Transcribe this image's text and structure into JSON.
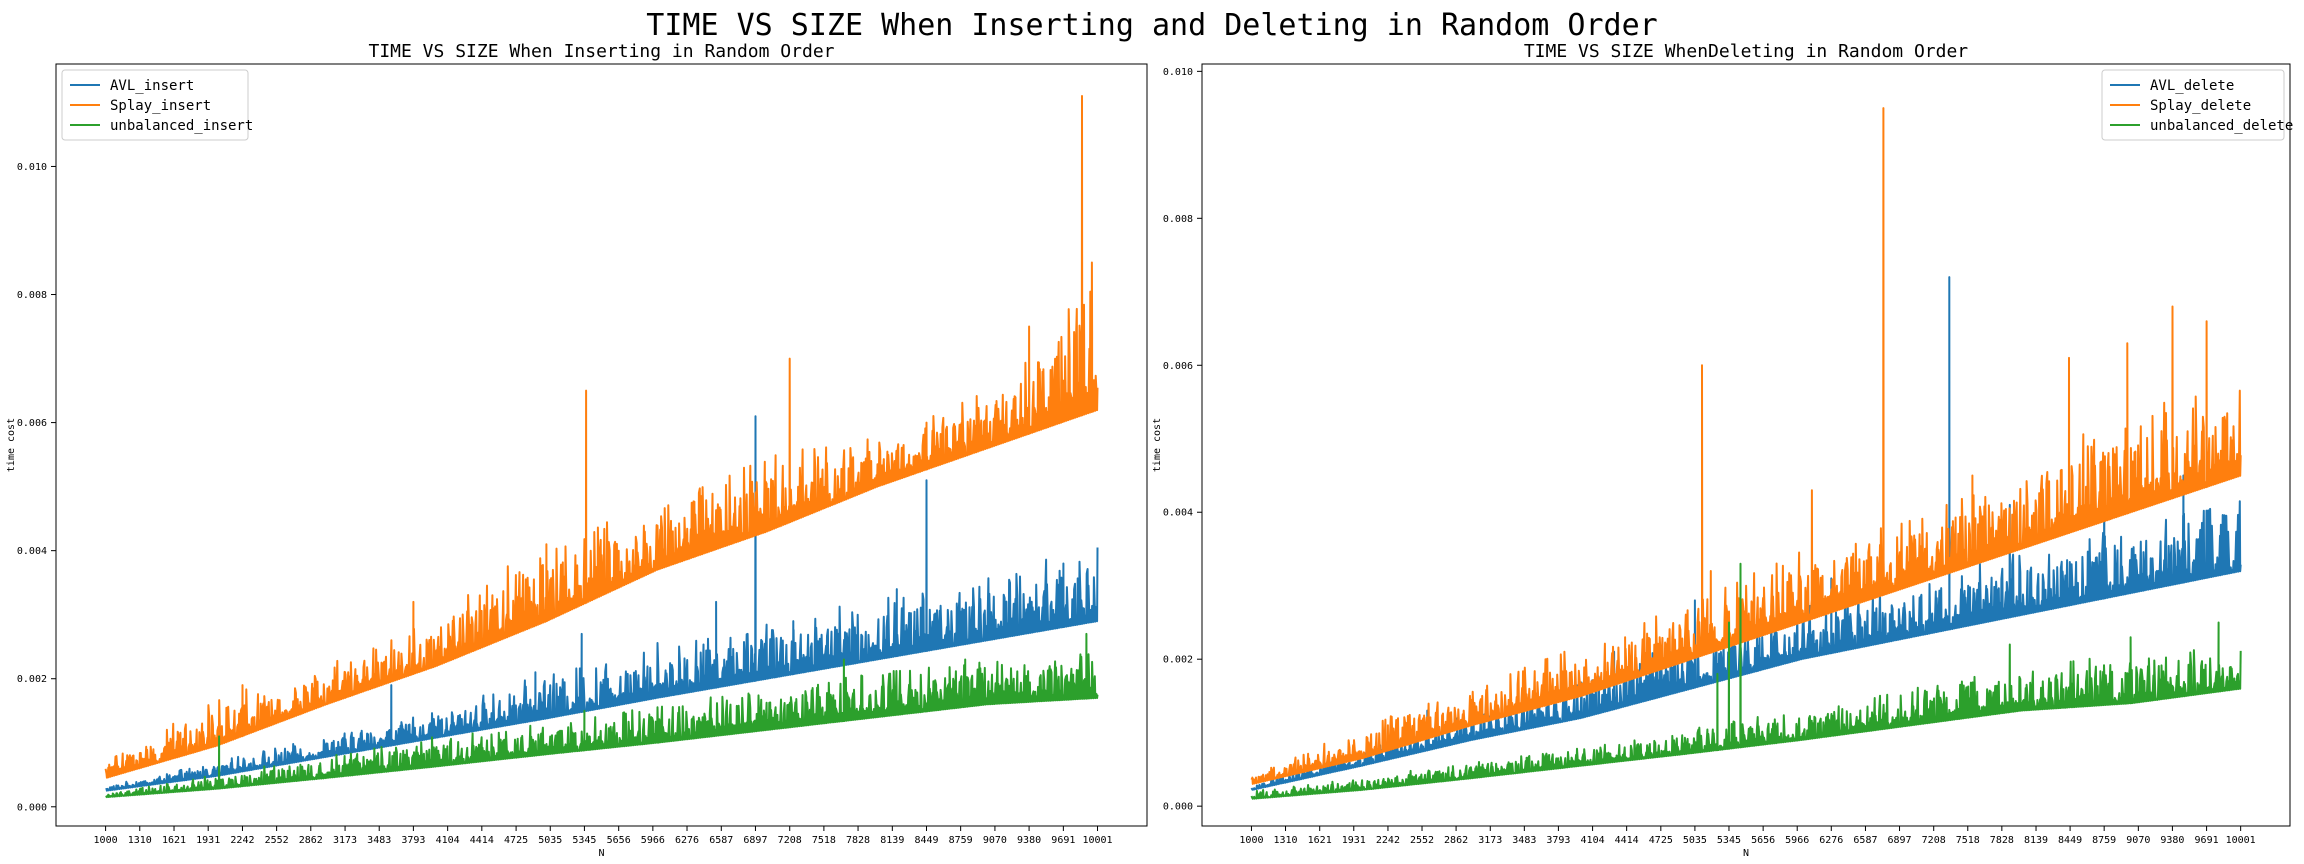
{
  "suptitle": "TIME VS SIZE When Inserting and Deleting in Random Order",
  "colors": {
    "blue": "#1f77b4",
    "orange": "#ff7f0e",
    "green": "#2ca02c"
  },
  "chart_data": [
    {
      "type": "line",
      "title": "TIME VS SIZE When Inserting in Random Order",
      "xlabel": "N",
      "ylabel": "time cost",
      "xlim": [
        550,
        10450
      ],
      "ylim": [
        -0.0003,
        0.0116
      ],
      "xticks": [
        1000,
        1310,
        1621,
        1931,
        2242,
        2552,
        2862,
        3173,
        3483,
        3793,
        4104,
        4414,
        4725,
        5035,
        5345,
        5656,
        5966,
        6276,
        6587,
        6897,
        7208,
        7518,
        7828,
        8139,
        8449,
        8759,
        9070,
        9380,
        9691,
        10001
      ],
      "yticks": [
        "0.000",
        "0.002",
        "0.004",
        "0.006",
        "0.008",
        "0.010"
      ],
      "legend_position": "upper-left",
      "series": [
        {
          "name": "AVL_insert",
          "color": "#1f77b4",
          "x": [
            1000,
            2000,
            3000,
            4000,
            5000,
            6000,
            7000,
            8000,
            9000,
            10001
          ],
          "baseline": [
            0.00025,
            0.00048,
            0.00078,
            0.00108,
            0.00138,
            0.0017,
            0.002,
            0.0023,
            0.0026,
            0.0029
          ],
          "upper": [
            0.00032,
            0.0007,
            0.0011,
            0.0015,
            0.0021,
            0.0026,
            0.0029,
            0.0033,
            0.0036,
            0.0041
          ],
          "peaks": [
            [
              3593,
              0.0019
            ],
            [
              4900,
              0.0021
            ],
            [
              5320,
              0.0027
            ],
            [
              6540,
              0.0032
            ],
            [
              6897,
              0.0061
            ],
            [
              7240,
              0.0029
            ],
            [
              8449,
              0.0051
            ],
            [
              8180,
              0.0034
            ],
            [
              9691,
              0.0038
            ]
          ]
        },
        {
          "name": "Splay_insert",
          "color": "#ff7f0e",
          "x": [
            1000,
            2000,
            3000,
            4000,
            5000,
            6000,
            7000,
            8000,
            9000,
            10001
          ],
          "baseline": [
            0.00045,
            0.00095,
            0.0016,
            0.0022,
            0.0029,
            0.0037,
            0.0043,
            0.005,
            0.0056,
            0.0062
          ],
          "upper": [
            0.0007,
            0.0017,
            0.0022,
            0.003,
            0.0042,
            0.0047,
            0.0055,
            0.0058,
            0.0065,
            0.0085
          ],
          "peaks": [
            [
              2242,
              0.0019
            ],
            [
              3173,
              0.0021
            ],
            [
              3793,
              0.0032
            ],
            [
              5000,
              0.0041
            ],
            [
              5360,
              0.0065
            ],
            [
              5656,
              0.004
            ],
            [
              7208,
              0.007
            ],
            [
              8449,
              0.006
            ],
            [
              9380,
              0.0075
            ],
            [
              9860,
              0.0111
            ],
            [
              9950,
              0.0085
            ]
          ]
        },
        {
          "name": "unbalanced_insert",
          "color": "#2ca02c",
          "x": [
            1000,
            2000,
            3000,
            4000,
            5000,
            6000,
            7000,
            8000,
            9000,
            10001
          ],
          "baseline": [
            0.00015,
            0.00028,
            0.00045,
            0.00063,
            0.00082,
            0.001,
            0.0012,
            0.0014,
            0.0016,
            0.0017
          ],
          "upper": [
            0.0002,
            0.0005,
            0.0008,
            0.0011,
            0.0013,
            0.0016,
            0.0019,
            0.0021,
            0.0023,
            0.0024
          ],
          "peaks": [
            [
              2030,
              0.0011
            ],
            [
              5345,
              0.0015
            ],
            [
              5390,
              0.0011
            ],
            [
              7700,
              0.0023
            ],
            [
              8800,
              0.0023
            ],
            [
              9900,
              0.0027
            ]
          ]
        }
      ]
    },
    {
      "type": "line",
      "title": "TIME VS SIZE WhenDeleting in Random Order",
      "xlabel": "N",
      "ylabel": "time cost",
      "xlim": [
        550,
        10450
      ],
      "ylim": [
        -0.00027,
        0.0101
      ],
      "xticks": [
        1000,
        1310,
        1621,
        1931,
        2242,
        2552,
        2862,
        3173,
        3483,
        3793,
        4104,
        4414,
        4725,
        5035,
        5345,
        5656,
        5966,
        6276,
        6587,
        6897,
        7208,
        7518,
        7828,
        8139,
        8449,
        8759,
        9070,
        9380,
        9691,
        10001
      ],
      "yticks": [
        "0.000",
        "0.002",
        "0.004",
        "0.006",
        "0.008",
        "0.010"
      ],
      "legend_position": "upper-right",
      "series": [
        {
          "name": "AVL_delete",
          "color": "#1f77b4",
          "x": [
            1000,
            2000,
            3000,
            4000,
            5000,
            6000,
            7000,
            8000,
            9000,
            10001
          ],
          "baseline": [
            0.00022,
            0.00055,
            0.0009,
            0.0012,
            0.0016,
            0.002,
            0.0023,
            0.0026,
            0.0029,
            0.0032
          ],
          "upper": [
            0.0003,
            0.0008,
            0.0013,
            0.0017,
            0.0023,
            0.0027,
            0.0031,
            0.0035,
            0.0039,
            0.0042
          ],
          "peaks": [
            [
              2600,
              0.0013
            ],
            [
              4300,
              0.0021
            ],
            [
              5035,
              0.0028
            ],
            [
              5600,
              0.0024
            ],
            [
              6276,
              0.0031
            ],
            [
              7350,
              0.0072
            ],
            [
              7900,
              0.0041
            ],
            [
              8759,
              0.0047
            ],
            [
              9480,
              0.0045
            ]
          ]
        },
        {
          "name": "Splay_delete",
          "color": "#ff7f0e",
          "x": [
            1000,
            2000,
            3000,
            4000,
            5000,
            6000,
            7000,
            8000,
            9000,
            10001
          ],
          "baseline": [
            0.0003,
            0.00065,
            0.0011,
            0.0015,
            0.002,
            0.0025,
            0.003,
            0.0035,
            0.004,
            0.0045
          ],
          "upper": [
            0.0004,
            0.0011,
            0.0016,
            0.0022,
            0.0028,
            0.0035,
            0.004,
            0.0047,
            0.0054,
            0.0058
          ],
          "peaks": [
            [
              2242,
              0.0011
            ],
            [
              3100,
              0.0015
            ],
            [
              4400,
              0.0023
            ],
            [
              5100,
              0.006
            ],
            [
              5180,
              0.0032
            ],
            [
              6100,
              0.0043
            ],
            [
              6750,
              0.0095
            ],
            [
              7560,
              0.0045
            ],
            [
              8439,
              0.0061
            ],
            [
              8970,
              0.0063
            ],
            [
              9381,
              0.0068
            ],
            [
              9691,
              0.0066
            ]
          ]
        },
        {
          "name": "unbalanced_delete",
          "color": "#2ca02c",
          "x": [
            1000,
            2000,
            3000,
            4000,
            5000,
            6000,
            7000,
            8000,
            9000,
            10001
          ],
          "baseline": [
            0.0001,
            0.00022,
            0.00038,
            0.00055,
            0.00072,
            0.0009,
            0.0011,
            0.0013,
            0.0014,
            0.0016
          ],
          "upper": [
            0.0002,
            0.0004,
            0.0006,
            0.0008,
            0.0011,
            0.0013,
            0.0016,
            0.0019,
            0.0021,
            0.0022
          ],
          "peaks": [
            [
              5240,
              0.0018
            ],
            [
              5345,
              0.0025
            ],
            [
              5450,
              0.0033
            ],
            [
              7900,
              0.0022
            ],
            [
              9000,
              0.0023
            ],
            [
              9800,
              0.0025
            ]
          ]
        }
      ]
    }
  ]
}
